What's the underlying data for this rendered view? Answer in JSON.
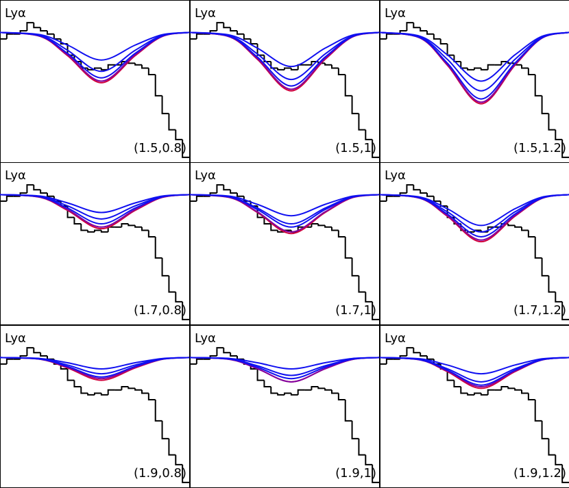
{
  "observed": {
    "bins": [
      0,
      1,
      2,
      3,
      4,
      5,
      6,
      7,
      8,
      9,
      10,
      11,
      12,
      13,
      14,
      15,
      16,
      17,
      18,
      19,
      20,
      21,
      22,
      23,
      24,
      25,
      26,
      27,
      28
    ],
    "values": [
      0.76,
      0.79,
      0.79,
      0.81,
      0.86,
      0.83,
      0.81,
      0.79,
      0.76,
      0.73,
      0.66,
      0.62,
      0.58,
      0.57,
      0.58,
      0.57,
      0.6,
      0.6,
      0.62,
      0.61,
      0.6,
      0.58,
      0.54,
      0.41,
      0.3,
      0.2,
      0.14,
      0.03
    ],
    "color": "#000000"
  },
  "chart_data": [
    {
      "type": "line",
      "label": "Lyα",
      "annotation": "(1.5,0.8)",
      "xlim": [
        0,
        28
      ],
      "ylim": [
        0,
        1
      ],
      "x": [
        0,
        6,
        10,
        15,
        20,
        24,
        28
      ],
      "series": [
        {
          "color": "#d0003c",
          "values": [
            0.8,
            0.775,
            0.657,
            0.49,
            0.657,
            0.775,
            0.8
          ]
        },
        {
          "color": "#8000a0",
          "values": [
            0.8,
            0.776,
            0.662,
            0.5,
            0.662,
            0.776,
            0.8
          ]
        },
        {
          "color": "#1010f0",
          "values": [
            0.8,
            0.778,
            0.671,
            0.52,
            0.671,
            0.778,
            0.8
          ]
        },
        {
          "color": "#1010f0",
          "values": [
            0.8,
            0.781,
            0.69,
            0.56,
            0.69,
            0.781,
            0.8
          ]
        },
        {
          "color": "#1010f0",
          "values": [
            0.8,
            0.786,
            0.722,
            0.63,
            0.722,
            0.786,
            0.8
          ]
        }
      ]
    },
    {
      "type": "line",
      "label": "Lyα",
      "annotation": "(1.5,1)",
      "xlim": [
        0,
        28
      ],
      "ylim": [
        0,
        1
      ],
      "x": [
        0,
        6,
        10,
        15,
        20,
        24,
        28
      ],
      "series": [
        {
          "color": "#d0003c",
          "values": [
            0.8,
            0.771,
            0.634,
            0.44,
            0.634,
            0.771,
            0.8
          ]
        },
        {
          "color": "#8000a0",
          "values": [
            0.8,
            0.772,
            0.639,
            0.45,
            0.639,
            0.772,
            0.8
          ]
        },
        {
          "color": "#1010f0",
          "values": [
            0.8,
            0.774,
            0.648,
            0.47,
            0.648,
            0.774,
            0.8
          ]
        },
        {
          "color": "#1010f0",
          "values": [
            0.8,
            0.777,
            0.667,
            0.51,
            0.667,
            0.777,
            0.8
          ]
        },
        {
          "color": "#1010f0",
          "values": [
            0.8,
            0.783,
            0.703,
            0.59,
            0.703,
            0.783,
            0.8
          ]
        }
      ]
    },
    {
      "type": "line",
      "label": "Lyα",
      "annotation": "(1.5,1.2)",
      "xlim": [
        0,
        28
      ],
      "ylim": [
        0,
        1
      ],
      "x": [
        0,
        6,
        10,
        15,
        20,
        24,
        28
      ],
      "series": [
        {
          "color": "#d0003c",
          "values": [
            0.8,
            0.765,
            0.598,
            0.36,
            0.598,
            0.765,
            0.8
          ]
        },
        {
          "color": "#8000a0",
          "values": [
            0.8,
            0.766,
            0.602,
            0.37,
            0.602,
            0.766,
            0.8
          ]
        },
        {
          "color": "#1010f0",
          "values": [
            0.8,
            0.767,
            0.611,
            0.39,
            0.611,
            0.767,
            0.8
          ]
        },
        {
          "color": "#1010f0",
          "values": [
            0.8,
            0.771,
            0.634,
            0.44,
            0.634,
            0.771,
            0.8
          ]
        },
        {
          "color": "#1010f0",
          "values": [
            0.8,
            0.776,
            0.662,
            0.5,
            0.662,
            0.776,
            0.8
          ]
        }
      ]
    },
    {
      "type": "line",
      "label": "Lyα",
      "annotation": "(1.7,0.8)",
      "xlim": [
        0,
        28
      ],
      "ylim": [
        0,
        1
      ],
      "x": [
        0,
        6,
        10,
        15,
        20,
        24,
        28
      ],
      "series": [
        {
          "color": "#d0003c",
          "values": [
            0.8,
            0.783,
            0.703,
            0.59,
            0.703,
            0.783,
            0.8
          ]
        },
        {
          "color": "#8000a0",
          "values": [
            0.8,
            0.784,
            0.708,
            0.6,
            0.708,
            0.784,
            0.8
          ]
        },
        {
          "color": "#1010f0",
          "values": [
            0.8,
            0.786,
            0.717,
            0.62,
            0.717,
            0.786,
            0.8
          ]
        },
        {
          "color": "#1010f0",
          "values": [
            0.8,
            0.788,
            0.731,
            0.65,
            0.731,
            0.788,
            0.8
          ]
        },
        {
          "color": "#1010f0",
          "values": [
            0.8,
            0.791,
            0.749,
            0.69,
            0.749,
            0.791,
            0.8
          ]
        }
      ]
    },
    {
      "type": "line",
      "label": "Lyα",
      "annotation": "(1.7,1)",
      "xlim": [
        0,
        28
      ],
      "ylim": [
        0,
        1
      ],
      "x": [
        0,
        6,
        10,
        15,
        20,
        24,
        28
      ],
      "series": [
        {
          "color": "#d0003c",
          "values": [
            0.8,
            0.781,
            0.69,
            0.56,
            0.69,
            0.781,
            0.8
          ]
        },
        {
          "color": "#8000a0",
          "values": [
            0.8,
            0.782,
            0.694,
            0.57,
            0.694,
            0.782,
            0.8
          ]
        },
        {
          "color": "#1010f0",
          "values": [
            0.8,
            0.784,
            0.708,
            0.6,
            0.708,
            0.784,
            0.8
          ]
        },
        {
          "color": "#1010f0",
          "values": [
            0.8,
            0.786,
            0.717,
            0.62,
            0.717,
            0.786,
            0.8
          ]
        },
        {
          "color": "#1010f0",
          "values": [
            0.8,
            0.79,
            0.74,
            0.67,
            0.74,
            0.79,
            0.8
          ]
        }
      ]
    },
    {
      "type": "line",
      "label": "Lyα",
      "annotation": "(1.7,1.2)",
      "xlim": [
        0,
        28
      ],
      "ylim": [
        0,
        1
      ],
      "x": [
        0,
        6,
        10,
        15,
        20,
        24,
        28
      ],
      "series": [
        {
          "color": "#d0003c",
          "values": [
            0.8,
            0.777,
            0.667,
            0.51,
            0.667,
            0.777,
            0.8
          ]
        },
        {
          "color": "#8000a0",
          "values": [
            0.8,
            0.778,
            0.671,
            0.52,
            0.671,
            0.778,
            0.8
          ]
        },
        {
          "color": "#1010f0",
          "values": [
            0.8,
            0.779,
            0.68,
            0.54,
            0.68,
            0.779,
            0.8
          ]
        },
        {
          "color": "#1010f0",
          "values": [
            0.8,
            0.782,
            0.694,
            0.57,
            0.694,
            0.782,
            0.8
          ]
        },
        {
          "color": "#1010f0",
          "values": [
            0.8,
            0.785,
            0.713,
            0.61,
            0.713,
            0.785,
            0.8
          ]
        }
      ]
    },
    {
      "type": "line",
      "label": "Lyα",
      "annotation": "(1.9,0.8)",
      "xlim": [
        0,
        28
      ],
      "ylim": [
        0,
        1
      ],
      "x": [
        0,
        6,
        10,
        15,
        20,
        24,
        28
      ],
      "series": [
        {
          "color": "#d0003c",
          "values": [
            0.8,
            0.789,
            0.736,
            0.66,
            0.736,
            0.789,
            0.8
          ]
        },
        {
          "color": "#8000a0",
          "values": [
            0.8,
            0.79,
            0.74,
            0.67,
            0.74,
            0.79,
            0.8
          ]
        },
        {
          "color": "#1010f0",
          "values": [
            0.8,
            0.79,
            0.745,
            0.68,
            0.745,
            0.79,
            0.8
          ]
        },
        {
          "color": "#1010f0",
          "values": [
            0.8,
            0.792,
            0.754,
            0.7,
            0.754,
            0.792,
            0.8
          ]
        },
        {
          "color": "#1010f0",
          "values": [
            0.8,
            0.794,
            0.768,
            0.73,
            0.768,
            0.794,
            0.8
          ]
        }
      ]
    },
    {
      "type": "line",
      "label": "Lyα",
      "annotation": "(1.9,1)",
      "xlim": [
        0,
        28
      ],
      "ylim": [
        0,
        1
      ],
      "x": [
        0,
        6,
        10,
        15,
        20,
        24,
        28
      ],
      "series": [
        {
          "color": "#d0003c",
          "values": [
            0.8,
            0.788,
            0.731,
            0.65,
            0.731,
            0.788,
            0.8
          ]
        },
        {
          "color": "#8000a0",
          "values": [
            0.8,
            0.788,
            0.731,
            0.65,
            0.731,
            0.788,
            0.8
          ]
        },
        {
          "color": "#1010f0",
          "values": [
            0.8,
            0.79,
            0.74,
            0.67,
            0.74,
            0.79,
            0.8
          ]
        },
        {
          "color": "#1010f0",
          "values": [
            0.8,
            0.791,
            0.749,
            0.69,
            0.749,
            0.791,
            0.8
          ]
        },
        {
          "color": "#1010f0",
          "values": [
            0.8,
            0.794,
            0.768,
            0.73,
            0.768,
            0.794,
            0.8
          ]
        }
      ]
    },
    {
      "type": "line",
      "label": "Lyα",
      "annotation": "(1.9,1.2)",
      "xlim": [
        0,
        28
      ],
      "ylim": [
        0,
        1
      ],
      "x": [
        0,
        6,
        10,
        15,
        20,
        24,
        28
      ],
      "series": [
        {
          "color": "#d0003c",
          "values": [
            0.8,
            0.785,
            0.713,
            0.61,
            0.713,
            0.785,
            0.8
          ]
        },
        {
          "color": "#8000a0",
          "values": [
            0.8,
            0.786,
            0.717,
            0.62,
            0.717,
            0.786,
            0.8
          ]
        },
        {
          "color": "#1010f0",
          "values": [
            0.8,
            0.786,
            0.722,
            0.63,
            0.722,
            0.786,
            0.8
          ]
        },
        {
          "color": "#1010f0",
          "values": [
            0.8,
            0.788,
            0.731,
            0.65,
            0.731,
            0.788,
            0.8
          ]
        },
        {
          "color": "#1010f0",
          "values": [
            0.8,
            0.792,
            0.754,
            0.7,
            0.754,
            0.792,
            0.8
          ]
        }
      ]
    }
  ]
}
